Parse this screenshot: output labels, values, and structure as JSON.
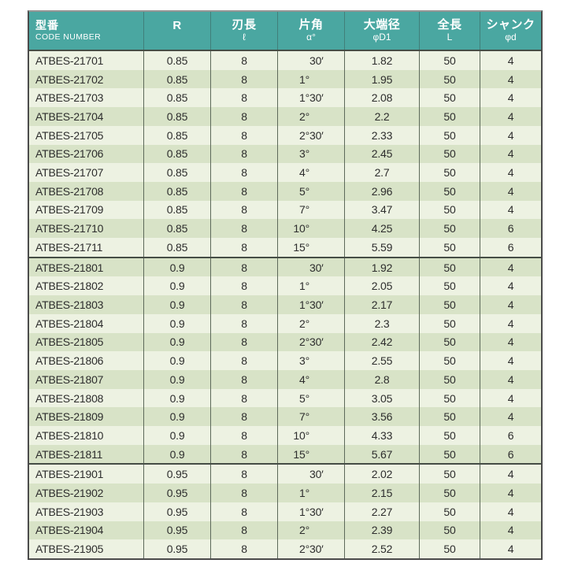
{
  "table": {
    "header": {
      "columns": [
        {
          "title": "型番",
          "sub": "CODE NUMBER"
        },
        {
          "title": "R",
          "sub": ""
        },
        {
          "title": "刃長",
          "sub": "ℓ"
        },
        {
          "title": "片角",
          "sub": "α°"
        },
        {
          "title": "大端径",
          "sub": "φD1"
        },
        {
          "title": "全長",
          "sub": "L"
        },
        {
          "title": "シャンク",
          "sub": "φd"
        }
      ]
    },
    "column_keys": [
      "code_number",
      "r",
      "blade_length",
      "half_angle",
      "large_end_dia",
      "overall_length",
      "shank_dia"
    ],
    "groups": [
      {
        "r_value": "0.85",
        "rows": [
          [
            "ATBES-21701",
            "0.85",
            "8",
            "30′",
            "1.82",
            "50",
            "4"
          ],
          [
            "ATBES-21702",
            "0.85",
            "8",
            "1°",
            "1.95",
            "50",
            "4"
          ],
          [
            "ATBES-21703",
            "0.85",
            "8",
            "1°30′",
            "2.08",
            "50",
            "4"
          ],
          [
            "ATBES-21704",
            "0.85",
            "8",
            "2°",
            "2.2",
            "50",
            "4"
          ],
          [
            "ATBES-21705",
            "0.85",
            "8",
            "2°30′",
            "2.33",
            "50",
            "4"
          ],
          [
            "ATBES-21706",
            "0.85",
            "8",
            "3°",
            "2.45",
            "50",
            "4"
          ],
          [
            "ATBES-21707",
            "0.85",
            "8",
            "4°",
            "2.7",
            "50",
            "4"
          ],
          [
            "ATBES-21708",
            "0.85",
            "8",
            "5°",
            "2.96",
            "50",
            "4"
          ],
          [
            "ATBES-21709",
            "0.85",
            "8",
            "7°",
            "3.47",
            "50",
            "4"
          ],
          [
            "ATBES-21710",
            "0.85",
            "8",
            "10°",
            "4.25",
            "50",
            "6"
          ],
          [
            "ATBES-21711",
            "0.85",
            "8",
            "15°",
            "5.59",
            "50",
            "6"
          ]
        ]
      },
      {
        "r_value": "0.9",
        "rows": [
          [
            "ATBES-21801",
            "0.9",
            "8",
            "30′",
            "1.92",
            "50",
            "4"
          ],
          [
            "ATBES-21802",
            "0.9",
            "8",
            "1°",
            "2.05",
            "50",
            "4"
          ],
          [
            "ATBES-21803",
            "0.9",
            "8",
            "1°30′",
            "2.17",
            "50",
            "4"
          ],
          [
            "ATBES-21804",
            "0.9",
            "8",
            "2°",
            "2.3",
            "50",
            "4"
          ],
          [
            "ATBES-21805",
            "0.9",
            "8",
            "2°30′",
            "2.42",
            "50",
            "4"
          ],
          [
            "ATBES-21806",
            "0.9",
            "8",
            "3°",
            "2.55",
            "50",
            "4"
          ],
          [
            "ATBES-21807",
            "0.9",
            "8",
            "4°",
            "2.8",
            "50",
            "4"
          ],
          [
            "ATBES-21808",
            "0.9",
            "8",
            "5°",
            "3.05",
            "50",
            "4"
          ],
          [
            "ATBES-21809",
            "0.9",
            "8",
            "7°",
            "3.56",
            "50",
            "4"
          ],
          [
            "ATBES-21810",
            "0.9",
            "8",
            "10°",
            "4.33",
            "50",
            "6"
          ],
          [
            "ATBES-21811",
            "0.9",
            "8",
            "15°",
            "5.67",
            "50",
            "6"
          ]
        ]
      },
      {
        "r_value": "0.95",
        "rows": [
          [
            "ATBES-21901",
            "0.95",
            "8",
            "30′",
            "2.02",
            "50",
            "4"
          ],
          [
            "ATBES-21902",
            "0.95",
            "8",
            "1°",
            "2.15",
            "50",
            "4"
          ],
          [
            "ATBES-21903",
            "0.95",
            "8",
            "1°30′",
            "2.27",
            "50",
            "4"
          ],
          [
            "ATBES-21904",
            "0.95",
            "8",
            "2°",
            "2.39",
            "50",
            "4"
          ],
          [
            "ATBES-21905",
            "0.95",
            "8",
            "2°30′",
            "2.52",
            "50",
            "4"
          ]
        ]
      }
    ]
  },
  "colors": {
    "header_teal": "#4AA7A1",
    "row_light": "#EDF2E2",
    "row_dark": "#D8E3C7",
    "grid_line": "#5D695A",
    "group_separator": "#454D45",
    "text": "#2D2D2D"
  }
}
